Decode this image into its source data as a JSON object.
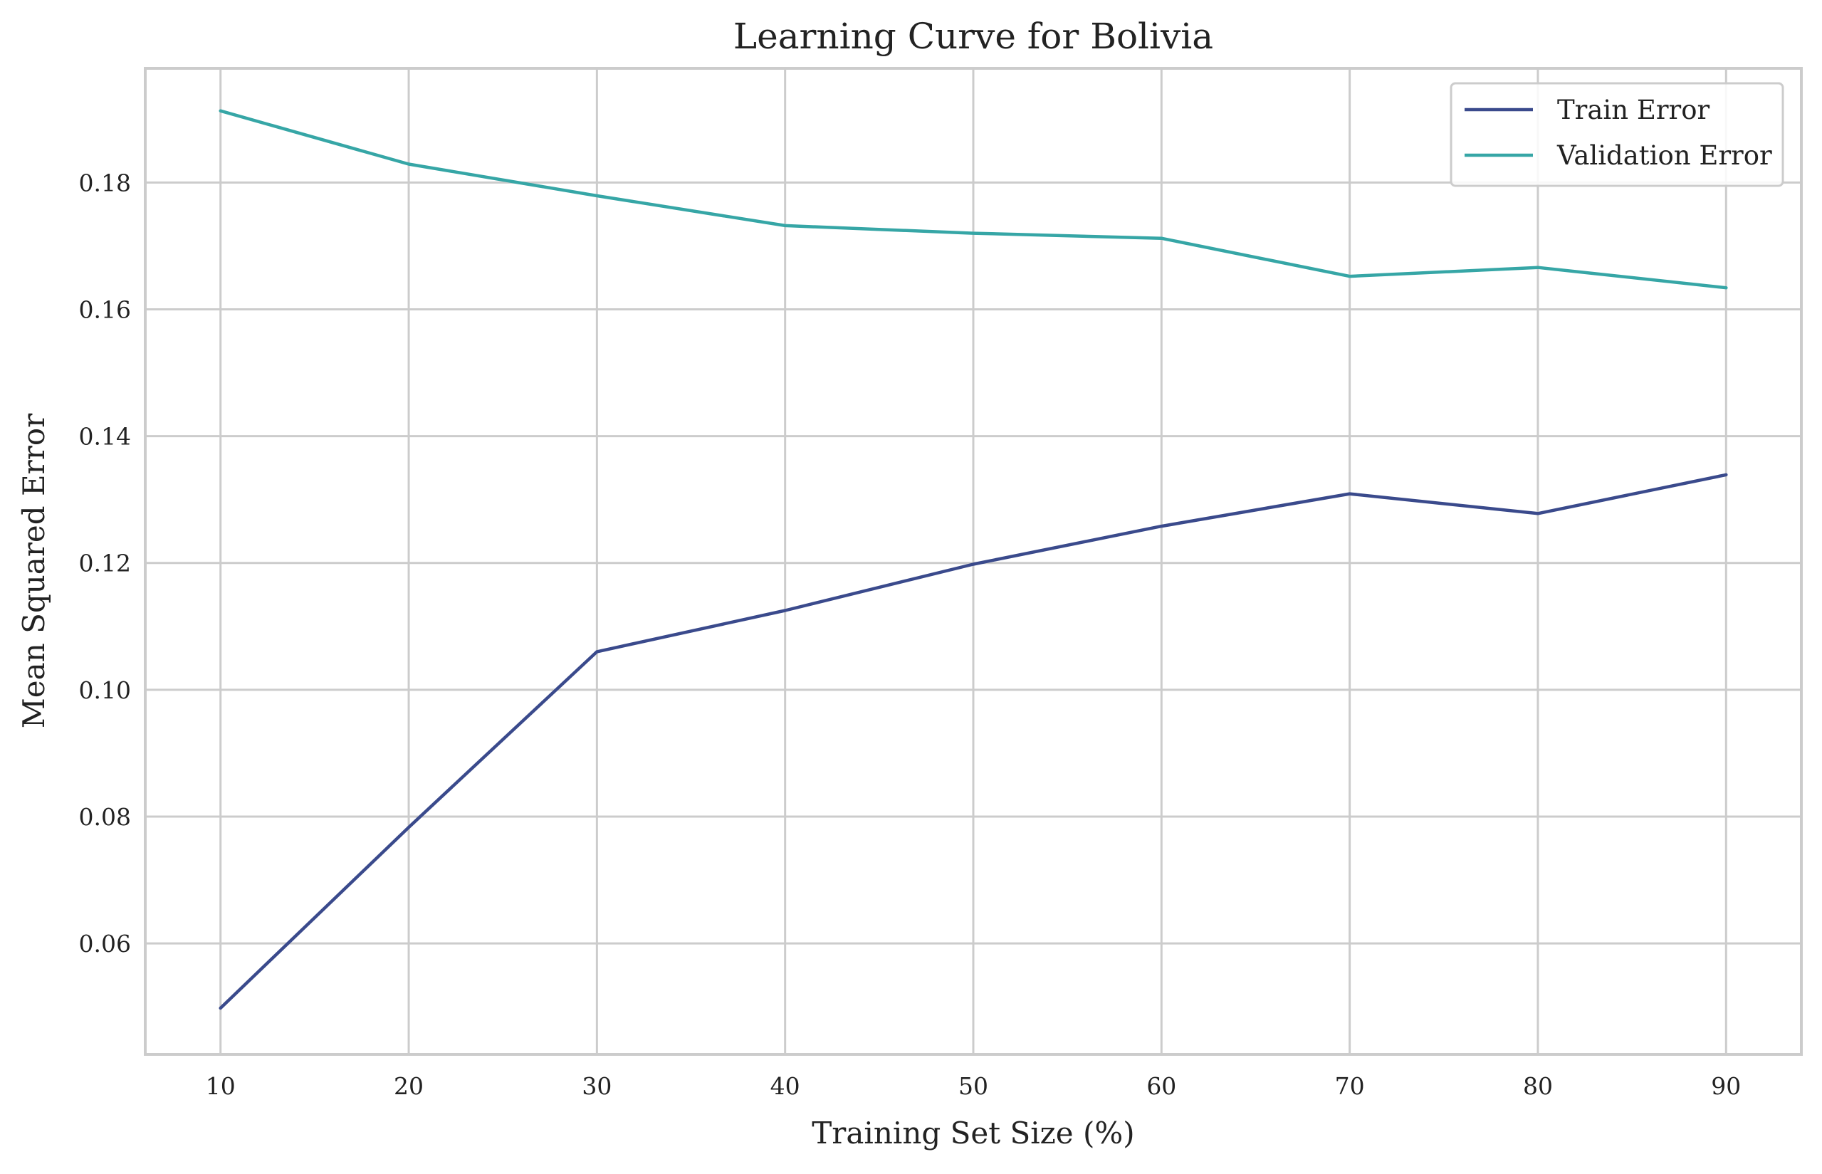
{
  "chart_data": {
    "type": "line",
    "title": "Learning Curve for Bolivia",
    "xlabel": "Training Set Size (%)",
    "ylabel": "Mean Squared Error",
    "x": [
      10,
      20,
      30,
      40,
      50,
      60,
      70,
      80,
      90
    ],
    "xlim": [
      6,
      94
    ],
    "ylim": [
      0.0425,
      0.198
    ],
    "xticks": [
      10,
      20,
      30,
      40,
      50,
      60,
      70,
      80,
      90
    ],
    "yticks": [
      0.06,
      0.08,
      0.1,
      0.12,
      0.14,
      0.16,
      0.18
    ],
    "ytick_labels": [
      "0.06",
      "0.08",
      "0.10",
      "0.12",
      "0.14",
      "0.16",
      "0.18"
    ],
    "grid": true,
    "legend_position": "top-right",
    "series": [
      {
        "name": "Train Error",
        "color": "#3a4a8c",
        "values": [
          0.0498,
          0.0783,
          0.106,
          0.1125,
          0.1198,
          0.1258,
          0.1309,
          0.1278,
          0.1339
        ]
      },
      {
        "name": "Validation Error",
        "color": "#36a6a6",
        "values": [
          0.1913,
          0.1829,
          0.1779,
          0.1732,
          0.172,
          0.1712,
          0.1652,
          0.1666,
          0.1634
        ]
      }
    ]
  }
}
